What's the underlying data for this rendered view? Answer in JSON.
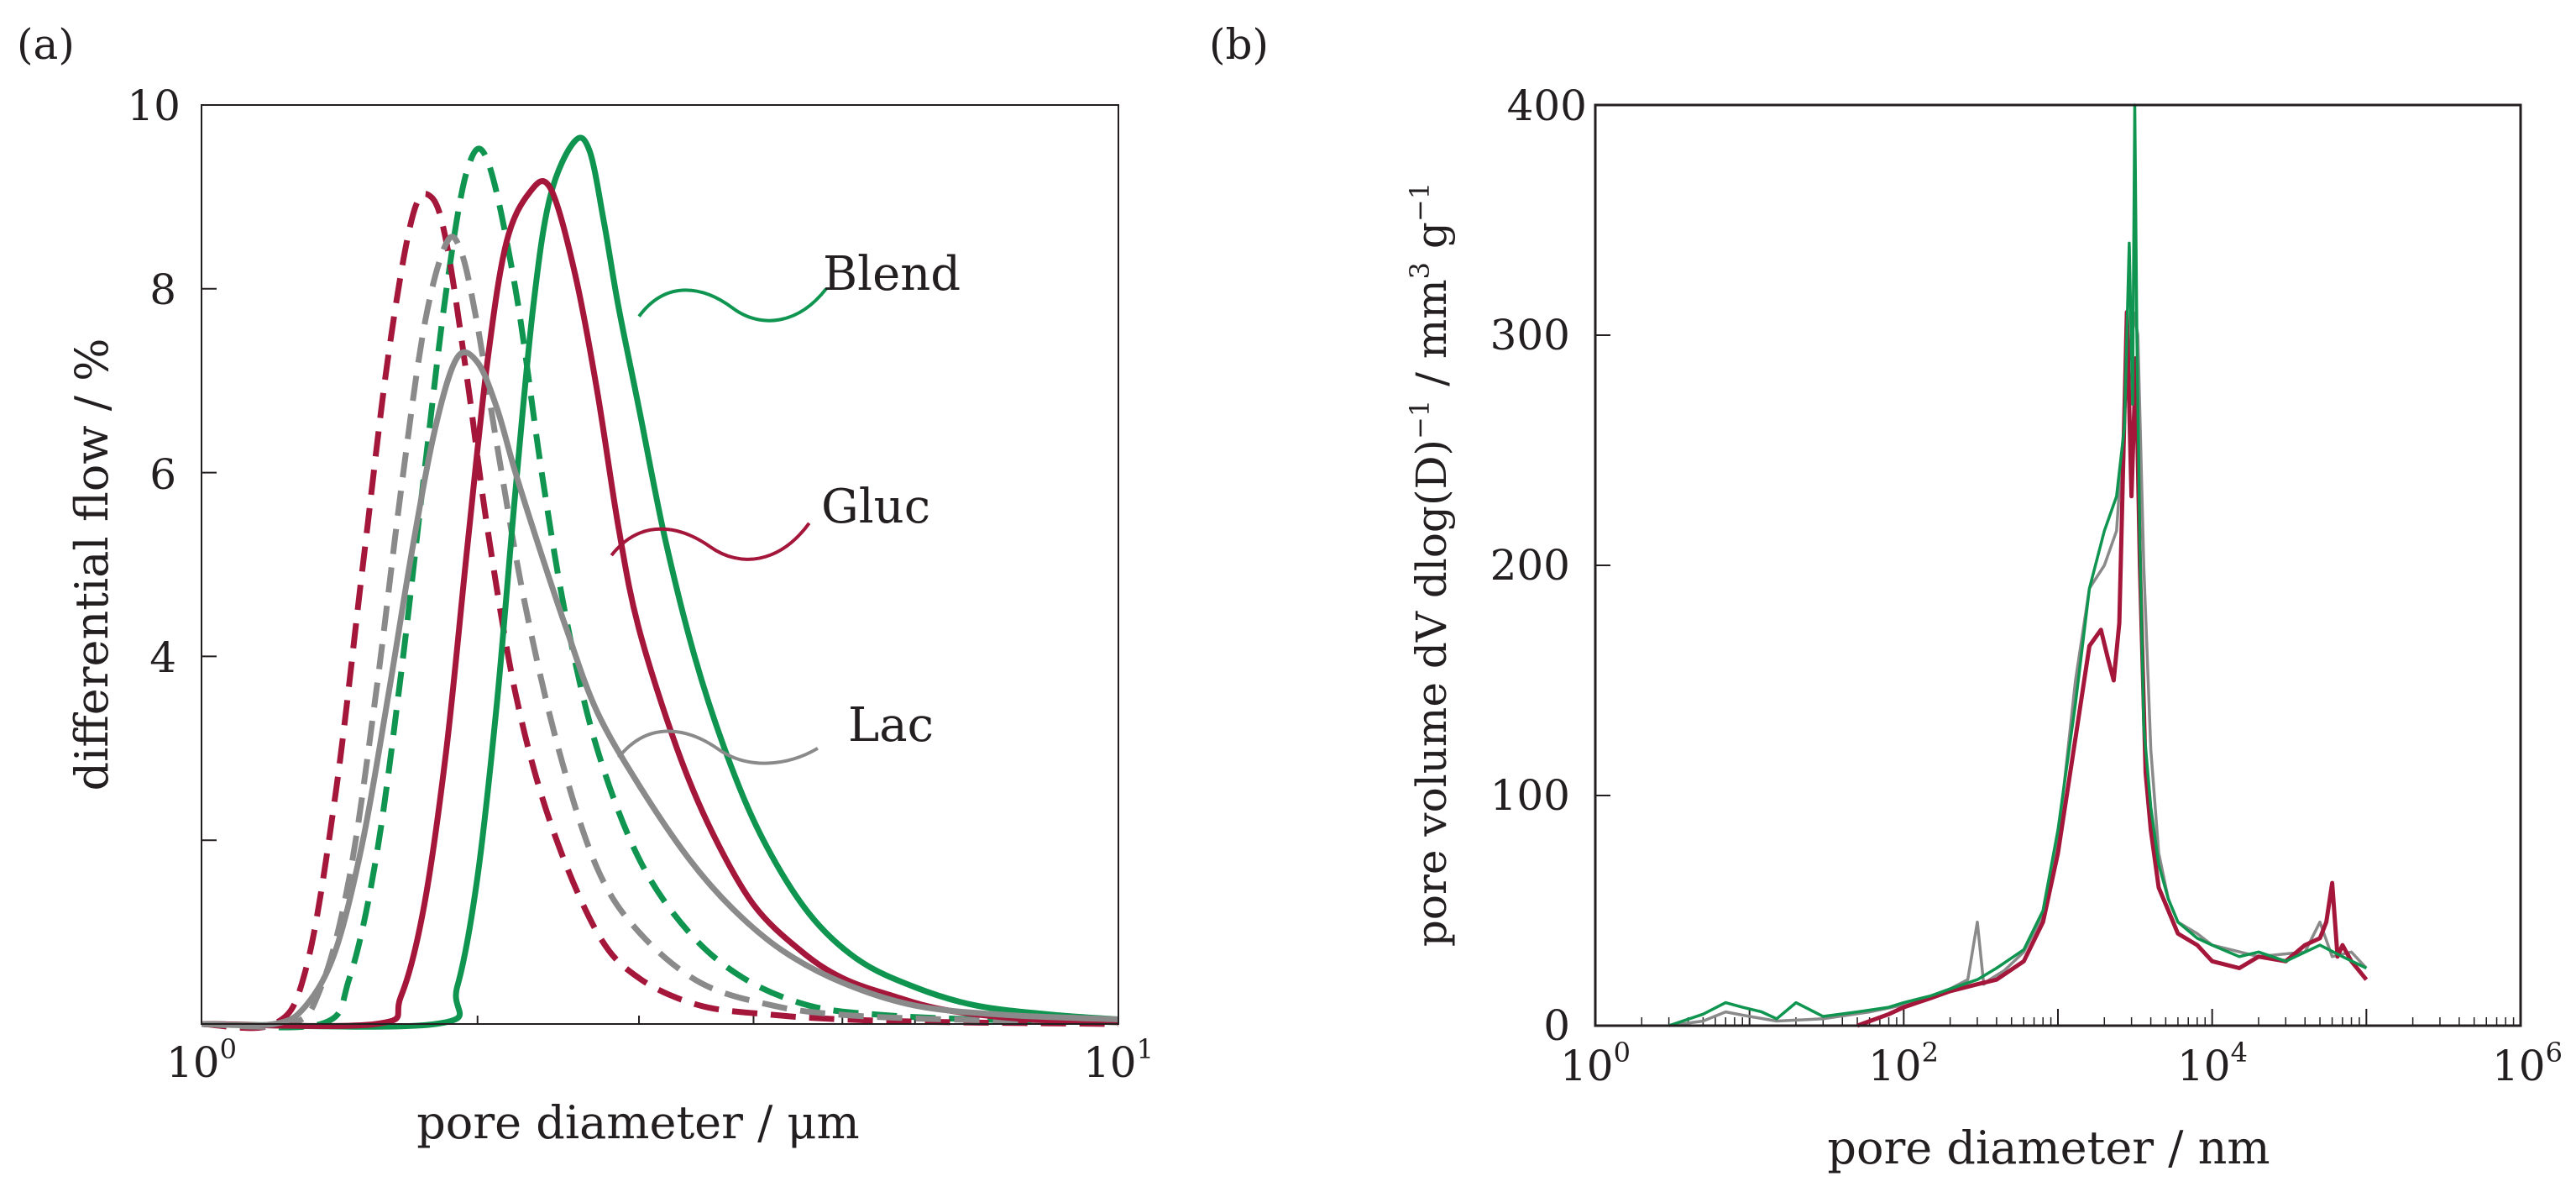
{
  "colors": {
    "blend": "#0f9550",
    "gluc": "#a4163a",
    "lac": "#8a8a8a",
    "frame": "#231f20"
  },
  "chart_data": [
    {
      "panel_label": "(a)",
      "type": "line",
      "x_scale": "log",
      "xlabel": "pore diameter / μm",
      "ylabel": "differential flow / %",
      "xlim": [
        1,
        10
      ],
      "ylim": [
        0,
        10
      ],
      "x_ticks": [
        {
          "base": "10",
          "exp": "0",
          "value": 1
        },
        {
          "base": "10",
          "exp": "1",
          "value": 10
        }
      ],
      "y_ticks": [
        {
          "label": "4",
          "value": 4
        },
        {
          "label": "6",
          "value": 6
        },
        {
          "label": "8",
          "value": 8
        },
        {
          "label": "10",
          "value": 10
        }
      ],
      "y_minor_ticks": [
        2
      ],
      "legend_labels": [
        {
          "text": "Blend",
          "color_key": "blend",
          "curve_point": [
            3.0,
            7.7
          ],
          "label_point": [
            4.8,
            8.0
          ]
        },
        {
          "text": "Gluc",
          "color_key": "gluc",
          "curve_point": [
            2.8,
            5.1
          ],
          "label_point": [
            4.6,
            5.45
          ]
        },
        {
          "text": "Lac",
          "color_key": "lac",
          "curve_point": [
            2.85,
            2.9
          ],
          "label_point": [
            4.7,
            3.0
          ]
        }
      ],
      "series": [
        {
          "name": "Blend",
          "style": "solid",
          "color_key": "blend",
          "x": [
            1.0,
            1.8,
            1.9,
            2.0,
            2.1,
            2.2,
            2.3,
            2.4,
            2.55,
            2.65,
            2.75,
            2.85,
            3.0,
            3.2,
            3.45,
            3.75,
            4.1,
            4.6,
            5.2,
            6.0,
            7.0,
            8.5,
            10.0
          ],
          "y": [
            0.0,
            0.0,
            0.4,
            1.6,
            3.5,
            5.8,
            7.8,
            9.0,
            9.6,
            9.5,
            8.7,
            7.8,
            6.7,
            5.3,
            4.0,
            2.9,
            2.0,
            1.2,
            0.7,
            0.4,
            0.2,
            0.1,
            0.05
          ]
        },
        {
          "name": "Gluc",
          "style": "solid",
          "color_key": "gluc",
          "x": [
            1.0,
            1.55,
            1.65,
            1.75,
            1.85,
            1.95,
            2.05,
            2.15,
            2.28,
            2.4,
            2.55,
            2.7,
            2.85,
            3.0,
            3.3,
            3.6,
            4.0,
            4.5,
            5.0,
            5.7,
            6.5,
            8.0,
            10.0
          ],
          "y": [
            0.0,
            0.0,
            0.3,
            1.3,
            3.0,
            5.2,
            7.2,
            8.5,
            9.05,
            9.1,
            8.2,
            6.9,
            5.4,
            4.3,
            3.0,
            2.1,
            1.3,
            0.8,
            0.5,
            0.3,
            0.15,
            0.05,
            0.02
          ]
        },
        {
          "name": "Lac",
          "style": "solid",
          "color_key": "lac",
          "x": [
            1.0,
            1.2,
            1.3,
            1.4,
            1.5,
            1.6,
            1.7,
            1.8,
            1.9,
            2.0,
            2.1,
            2.2,
            2.35,
            2.5,
            2.7,
            3.0,
            3.4,
            3.8,
            4.3,
            5.0,
            6.0,
            7.5,
            10.0
          ],
          "y": [
            0.0,
            0.0,
            0.2,
            0.8,
            2.0,
            3.6,
            5.2,
            6.5,
            7.25,
            7.2,
            6.7,
            6.0,
            5.1,
            4.3,
            3.4,
            2.6,
            1.8,
            1.25,
            0.8,
            0.45,
            0.2,
            0.1,
            0.05
          ]
        },
        {
          "name": "Blend (dashed)",
          "style": "dashed",
          "color_key": "blend",
          "x": [
            1.0,
            1.35,
            1.45,
            1.55,
            1.65,
            1.75,
            1.85,
            1.95,
            2.05,
            2.2,
            2.35,
            2.5,
            2.7,
            3.0,
            3.4,
            3.9,
            4.6,
            5.5,
            7.0,
            10.0
          ],
          "y": [
            0.0,
            0.0,
            0.5,
            1.8,
            3.8,
            6.0,
            8.0,
            9.3,
            9.4,
            8.0,
            6.0,
            4.4,
            3.0,
            1.8,
            1.0,
            0.5,
            0.2,
            0.1,
            0.05,
            0.02
          ]
        },
        {
          "name": "Gluc (dashed)",
          "style": "dashed",
          "color_key": "gluc",
          "x": [
            1.0,
            1.2,
            1.3,
            1.4,
            1.5,
            1.6,
            1.7,
            1.78,
            1.85,
            1.95,
            2.05,
            2.2,
            2.4,
            2.7,
            3.0,
            3.5,
            4.2,
            5.0,
            6.5,
            10.0
          ],
          "y": [
            0.0,
            0.0,
            0.6,
            2.5,
            5.0,
            7.3,
            8.8,
            9.0,
            8.5,
            7.0,
            5.4,
            3.6,
            2.2,
            1.0,
            0.5,
            0.2,
            0.1,
            0.05,
            0.02,
            0.0
          ]
        },
        {
          "name": "Lac (dashed)",
          "style": "dashed",
          "color_key": "lac",
          "x": [
            1.0,
            1.25,
            1.35,
            1.45,
            1.55,
            1.65,
            1.75,
            1.85,
            1.92,
            2.0,
            2.1,
            2.25,
            2.45,
            2.7,
            3.0,
            3.5,
            4.2,
            5.0,
            6.5,
            10.0
          ],
          "y": [
            0.0,
            0.0,
            0.4,
            1.6,
            3.6,
            5.8,
            7.6,
            8.5,
            8.4,
            7.6,
            6.3,
            4.6,
            3.0,
            1.7,
            1.0,
            0.45,
            0.2,
            0.1,
            0.05,
            0.02
          ]
        }
      ]
    },
    {
      "panel_label": "(b)",
      "type": "line",
      "x_scale": "log",
      "xlabel": "pore diameter / nm",
      "ylabel_main": "pore volume dV dlog(D)",
      "ylabel_sup1": "−1",
      "ylabel_mid": " / mm",
      "ylabel_sup2": "3",
      "ylabel_mid2": " g",
      "ylabel_sup3": "−1",
      "xlim": [
        1,
        1000000
      ],
      "ylim": [
        0,
        400
      ],
      "x_ticks": [
        {
          "base": "10",
          "exp": "0",
          "value": 1
        },
        {
          "base": "10",
          "exp": "2",
          "value": 100
        },
        {
          "base": "10",
          "exp": "4",
          "value": 10000
        },
        {
          "base": "10",
          "exp": "6",
          "value": 1000000
        }
      ],
      "y_ticks": [
        {
          "label": "0",
          "value": 0
        },
        {
          "label": "100",
          "value": 100
        },
        {
          "label": "200",
          "value": 200
        },
        {
          "label": "300",
          "value": 300
        },
        {
          "label": "400",
          "value": 400
        }
      ],
      "series": [
        {
          "name": "Lac",
          "color_key": "lac",
          "x": [
            3,
            5,
            7,
            10,
            15,
            30,
            60,
            100,
            150,
            200,
            260,
            300,
            330,
            360,
            450,
            600,
            800,
            1000,
            1300,
            1600,
            2000,
            2400,
            2800,
            3100,
            3300,
            3600,
            4000,
            4500,
            5200,
            6000,
            8000,
            10000,
            20000,
            40000,
            50000,
            60000,
            80000,
            100000
          ],
          "y": [
            0,
            2,
            6,
            4,
            2,
            3,
            6,
            9,
            12,
            16,
            20,
            45,
            18,
            20,
            24,
            32,
            48,
            80,
            150,
            190,
            200,
            215,
            280,
            310,
            300,
            200,
            120,
            75,
            55,
            45,
            40,
            35,
            30,
            32,
            45,
            30,
            32,
            25
          ]
        },
        {
          "name": "Gluc",
          "color_key": "gluc",
          "x": [
            50,
            80,
            100,
            150,
            200,
            300,
            400,
            600,
            800,
            1000,
            1300,
            1600,
            1900,
            2100,
            2300,
            2500,
            2800,
            3000,
            3200,
            3400,
            3700,
            4000,
            4500,
            5200,
            6000,
            8000,
            10000,
            15000,
            20000,
            30000,
            40000,
            50000,
            55000,
            60000,
            65000,
            70000,
            80000,
            100000
          ],
          "y": [
            0,
            5,
            8,
            12,
            15,
            18,
            20,
            28,
            45,
            75,
            125,
            165,
            172,
            160,
            150,
            175,
            310,
            230,
            290,
            200,
            110,
            85,
            60,
            50,
            40,
            35,
            28,
            25,
            30,
            28,
            35,
            38,
            45,
            62,
            30,
            35,
            28,
            20
          ]
        },
        {
          "name": "Blend",
          "color_key": "blend",
          "x": [
            3,
            5,
            7,
            9,
            12,
            15,
            20,
            30,
            50,
            80,
            100,
            150,
            200,
            300,
            400,
            600,
            800,
            1000,
            1300,
            1600,
            2000,
            2400,
            2700,
            2900,
            3050,
            3150,
            3250,
            3400,
            3600,
            4000,
            4500,
            5200,
            6000,
            8000,
            10000,
            15000,
            20000,
            30000,
            50000,
            70000,
            100000
          ],
          "y": [
            0,
            5,
            10,
            8,
            6,
            3,
            10,
            4,
            6,
            8,
            10,
            13,
            16,
            20,
            25,
            33,
            50,
            85,
            140,
            190,
            215,
            230,
            260,
            340,
            270,
            400,
            300,
            210,
            130,
            95,
            70,
            55,
            45,
            38,
            35,
            30,
            32,
            28,
            35,
            30,
            25
          ]
        }
      ]
    }
  ]
}
